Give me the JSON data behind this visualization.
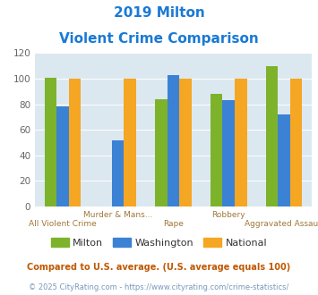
{
  "title_line1": "2019 Milton",
  "title_line2": "Violent Crime Comparison",
  "categories": [
    "All Violent Crime",
    "Murder & Mans...",
    "Rape",
    "Robbery",
    "Aggravated Assault"
  ],
  "bottom_labels": [
    "All Violent Crime",
    "",
    "Rape",
    "",
    "Aggravated Assault"
  ],
  "top_labels": [
    "",
    "Murder & Mans...",
    "",
    "Robbery",
    ""
  ],
  "series": {
    "Milton": [
      101,
      0,
      84,
      88,
      110
    ],
    "Washington": [
      78,
      52,
      103,
      83,
      72
    ],
    "National": [
      100,
      100,
      100,
      100,
      100
    ]
  },
  "colors": {
    "Milton": "#7db32b",
    "Washington": "#3b82d4",
    "National": "#f5a623"
  },
  "ylim": [
    0,
    120
  ],
  "yticks": [
    0,
    20,
    40,
    60,
    80,
    100,
    120
  ],
  "bg_color": "#dce8f0",
  "title_color": "#1a7ad4",
  "xlabel_color": "#a07838",
  "legend_text_color": "#333333",
  "footnote1": "Compared to U.S. average. (U.S. average equals 100)",
  "footnote2": "© 2025 CityRating.com - https://www.cityrating.com/crime-statistics/",
  "footnote1_color": "#c05800",
  "footnote2_color": "#7799bb",
  "bar_width": 0.22
}
